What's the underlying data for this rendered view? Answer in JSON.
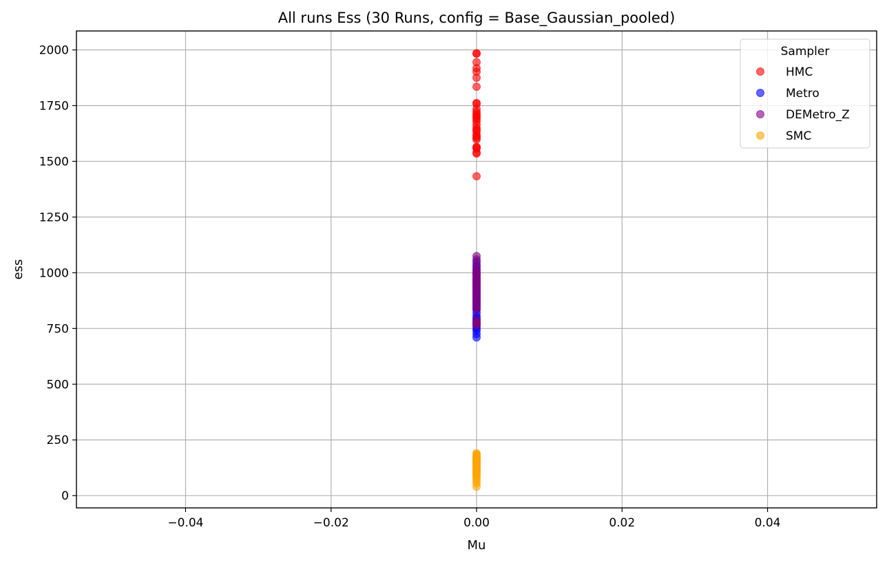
{
  "chart_data": {
    "type": "scatter",
    "title": "All runs Ess (30 Runs, config = Base_Gaussian_pooled)",
    "xlabel": "Mu",
    "ylabel": "ess",
    "xlim": [
      -0.055,
      0.055
    ],
    "ylim": [
      -55,
      2085
    ],
    "x_ticks": [
      -0.04,
      -0.02,
      0.0,
      0.02,
      0.04
    ],
    "x_tick_labels": [
      "−0.04",
      "−0.02",
      "0.00",
      "0.02",
      "0.04"
    ],
    "y_ticks": [
      0,
      250,
      500,
      750,
      1000,
      1250,
      1500,
      1750,
      2000
    ],
    "y_tick_labels": [
      "0",
      "250",
      "500",
      "750",
      "1000",
      "1250",
      "1500",
      "1750",
      "2000"
    ],
    "grid": true,
    "legend": {
      "title": "Sampler",
      "placement": "top-right"
    },
    "series": [
      {
        "name": "HMC",
        "color": "#ff0000",
        "x": [
          0,
          0,
          0,
          0,
          0,
          0,
          0,
          0,
          0,
          0,
          0,
          0,
          0,
          0,
          0,
          0,
          0,
          0,
          0,
          0,
          0,
          0,
          0,
          0,
          0,
          0,
          0,
          0,
          0,
          0
        ],
        "y": [
          1985,
          1983,
          1945,
          1918,
          1902,
          1875,
          1835,
          1762,
          1758,
          1735,
          1722,
          1712,
          1705,
          1698,
          1690,
          1680,
          1665,
          1650,
          1642,
          1635,
          1620,
          1612,
          1605,
          1598,
          1565,
          1562,
          1558,
          1540,
          1535,
          1433
        ]
      },
      {
        "name": "Metro",
        "color": "#0000ff",
        "x": [
          0,
          0,
          0,
          0,
          0,
          0,
          0,
          0,
          0,
          0,
          0,
          0,
          0,
          0,
          0,
          0,
          0,
          0,
          0,
          0,
          0,
          0,
          0,
          0,
          0,
          0,
          0,
          0,
          0,
          0
        ],
        "y": [
          1050,
          1030,
          1015,
          1000,
          990,
          975,
          965,
          955,
          945,
          935,
          925,
          915,
          905,
          895,
          885,
          875,
          865,
          855,
          845,
          835,
          820,
          805,
          795,
          785,
          770,
          760,
          750,
          740,
          725,
          710
        ]
      },
      {
        "name": "DEMetro_Z",
        "color": "#800080",
        "x": [
          0,
          0,
          0,
          0,
          0,
          0,
          0,
          0,
          0,
          0,
          0,
          0,
          0,
          0,
          0,
          0,
          0,
          0,
          0,
          0,
          0,
          0,
          0,
          0,
          0,
          0,
          0,
          0,
          0,
          0
        ],
        "y": [
          1075,
          1060,
          1040,
          1025,
          1010,
          1000,
          992,
          985,
          978,
          970,
          962,
          955,
          948,
          940,
          932,
          925,
          915,
          905,
          895,
          885,
          875,
          865,
          855,
          845,
          835,
          790,
          780,
          775,
          770,
          765
        ]
      },
      {
        "name": "SMC",
        "color": "#ffa500",
        "x": [
          0,
          0,
          0,
          0,
          0,
          0,
          0,
          0,
          0,
          0,
          0,
          0,
          0,
          0,
          0,
          0,
          0,
          0,
          0,
          0,
          0,
          0,
          0,
          0,
          0,
          0,
          0,
          0,
          0,
          0
        ],
        "y": [
          190,
          185,
          180,
          175,
          170,
          168,
          165,
          162,
          160,
          155,
          150,
          148,
          145,
          140,
          135,
          130,
          128,
          125,
          120,
          115,
          110,
          105,
          100,
          95,
          90,
          85,
          75,
          65,
          55,
          40
        ]
      }
    ]
  }
}
